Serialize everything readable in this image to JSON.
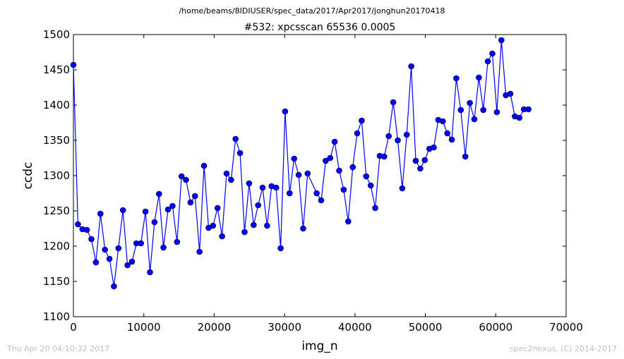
{
  "suptitle": "/home/beams/8IDIUSER/spec_data/2017/Apr2017/jonghun20170418",
  "footer": {
    "timestamp": "Thu Apr 20 04:10:32 2017",
    "credit": "spec2nexus, (C) 2014-2017"
  },
  "chart_data": {
    "type": "line",
    "title": "#532: xpcsscan 65536 0.0005",
    "xlabel": "img_n",
    "ylabel": "ccdc",
    "xlim": [
      0,
      70000
    ],
    "ylim": [
      1100,
      1500
    ],
    "xticks": [
      0,
      10000,
      20000,
      30000,
      40000,
      50000,
      60000,
      70000
    ],
    "yticks": [
      1100,
      1150,
      1200,
      1250,
      1300,
      1350,
      1400,
      1450,
      1500
    ],
    "grid": false,
    "colors": {
      "line": "#0000ff",
      "marker": "#0000ff"
    },
    "series": [
      {
        "x": [
          0,
          640,
          1280,
          1920,
          2560,
          3200,
          3840,
          4480,
          5120,
          5760,
          6400,
          7040,
          7680,
          8320,
          8960,
          9600,
          10240,
          10880,
          11520,
          12160,
          12800,
          13440,
          14080,
          14720,
          15360,
          16000,
          16640,
          17280,
          17920,
          18560,
          19200,
          19840,
          20480,
          21120,
          21760,
          22400,
          23040,
          23680,
          24320,
          24960,
          25600,
          26240,
          26880,
          27520,
          28160,
          28800,
          29440,
          30080,
          30720,
          31360,
          32000,
          32640,
          33280,
          34560,
          35200,
          35840,
          36480,
          37120,
          37760,
          38400,
          39040,
          39680,
          40320,
          40960,
          41600,
          42240,
          42880,
          43520,
          44160,
          44800,
          45440,
          46080,
          46720,
          47360,
          48000,
          48640,
          49280,
          49920,
          50560,
          51200,
          51840,
          52480,
          53120,
          53760,
          54400,
          55040,
          55680,
          56320,
          56960,
          57600,
          58240,
          58880,
          59520,
          60160,
          60800,
          61440,
          62080,
          62720,
          63360,
          64000,
          64640
        ],
        "y": [
          1457,
          1231,
          1224,
          1223,
          1210,
          1177,
          1246,
          1195,
          1182,
          1143,
          1197,
          1251,
          1173,
          1178,
          1204,
          1204,
          1249,
          1163,
          1234,
          1274,
          1198,
          1252,
          1257,
          1206,
          1299,
          1294,
          1262,
          1271,
          1192,
          1314,
          1226,
          1229,
          1254,
          1214,
          1303,
          1294,
          1352,
          1332,
          1220,
          1289,
          1230,
          1258,
          1283,
          1229,
          1285,
          1283,
          1197,
          1391,
          1275,
          1324,
          1301,
          1225,
          1303,
          1275,
          1265,
          1321,
          1325,
          1348,
          1307,
          1280,
          1235,
          1312,
          1360,
          1378,
          1299,
          1286,
          1254,
          1328,
          1327,
          1356,
          1404,
          1350,
          1282,
          1358,
          1455,
          1321,
          1310,
          1322,
          1338,
          1340,
          1379,
          1377,
          1360,
          1351,
          1438,
          1393,
          1327,
          1403,
          1380,
          1439,
          1393,
          1462,
          1473,
          1390,
          1492,
          1414,
          1416,
          1384,
          1382,
          1394,
          1394
        ]
      }
    ]
  }
}
